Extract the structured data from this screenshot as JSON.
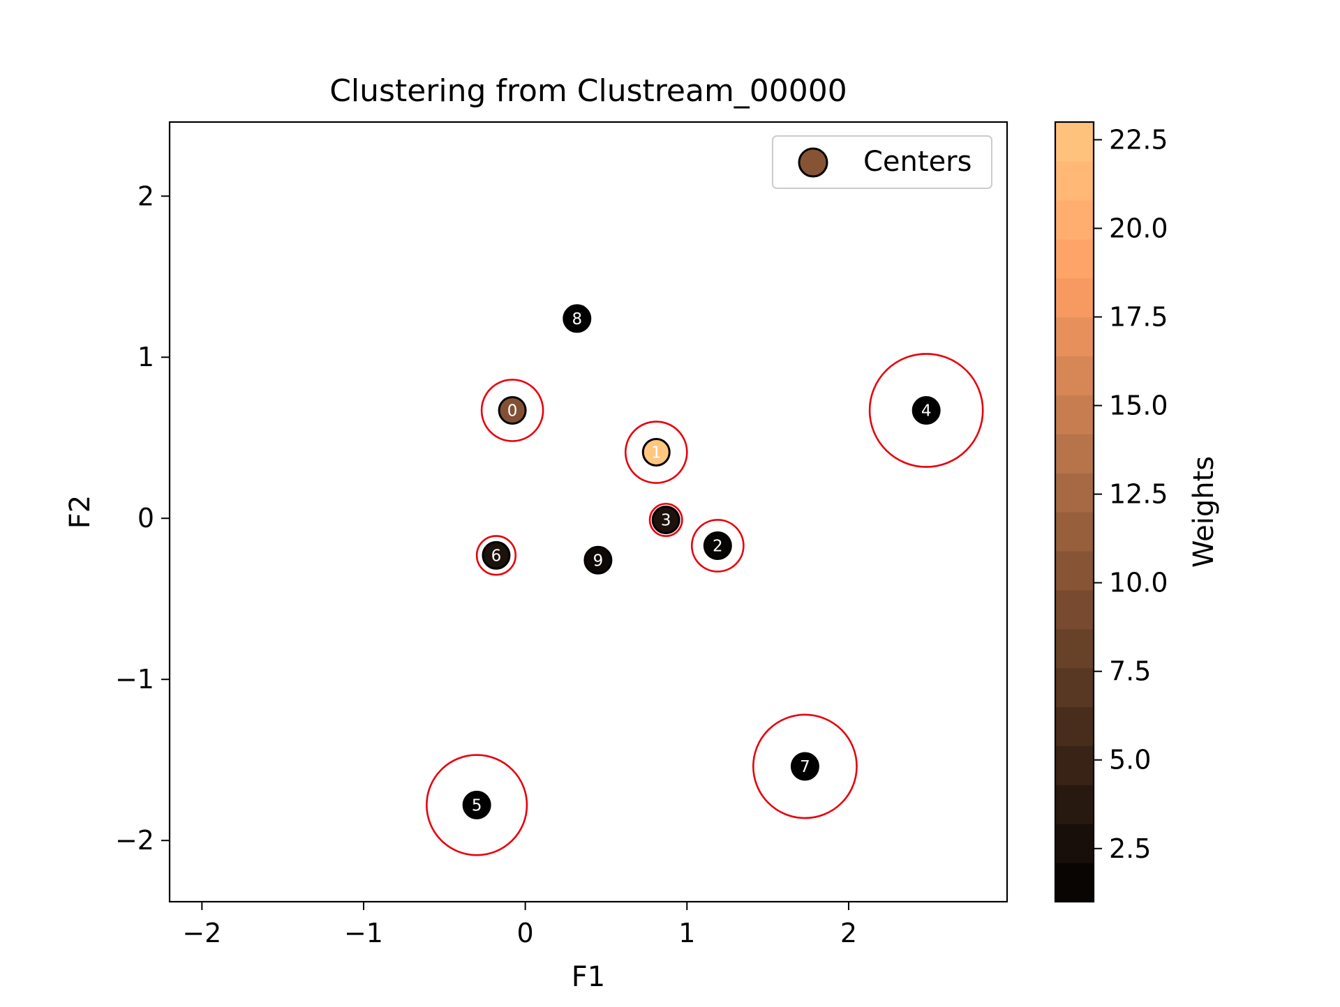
{
  "chart_data": {
    "type": "scatter",
    "title": "Clustering from Clustream_00000",
    "xlabel": "F1",
    "ylabel": "F2",
    "xlim": [
      -2.2,
      2.98
    ],
    "ylim": [
      -2.38,
      2.46
    ],
    "xticks": [
      -2,
      -1,
      0,
      1,
      2
    ],
    "xtick_labels": [
      "−2",
      "−1",
      "0",
      "1",
      "2"
    ],
    "yticks": [
      -2,
      -1,
      0,
      1,
      2
    ],
    "ytick_labels": [
      "−2",
      "−1",
      "0",
      "1",
      "2"
    ],
    "grid": false,
    "legend": {
      "position": "top-right",
      "entries": [
        "Centers"
      ]
    },
    "colorbar": {
      "label": "Weights",
      "colormap": "copper",
      "range": [
        1.0,
        23.0
      ],
      "ticks": [
        2.5,
        5.0,
        7.5,
        10.0,
        12.5,
        15.0,
        17.5,
        20.0,
        22.5
      ],
      "tick_labels": [
        "2.5",
        "5.0",
        "7.5",
        "10.0",
        "12.5",
        "15.0",
        "17.5",
        "20.0",
        "22.5"
      ]
    },
    "points": [
      {
        "label": "0",
        "x": -0.08,
        "y": 0.67,
        "weight": 10.0,
        "radius": 0.19
      },
      {
        "label": "1",
        "x": 0.81,
        "y": 0.41,
        "weight": 23.0,
        "radius": 0.19
      },
      {
        "label": "2",
        "x": 1.19,
        "y": -0.17,
        "weight": 1.5,
        "radius": 0.16
      },
      {
        "label": "3",
        "x": 0.87,
        "y": -0.01,
        "weight": 3.0,
        "radius": 0.1
      },
      {
        "label": "4",
        "x": 2.48,
        "y": 0.67,
        "weight": 1.0,
        "radius": 0.35
      },
      {
        "label": "5",
        "x": -0.3,
        "y": -1.78,
        "weight": 1.0,
        "radius": 0.31
      },
      {
        "label": "6",
        "x": -0.18,
        "y": -0.23,
        "weight": 3.0,
        "radius": 0.12
      },
      {
        "label": "7",
        "x": 1.73,
        "y": -1.54,
        "weight": 1.0,
        "radius": 0.32
      },
      {
        "label": "8",
        "x": 0.32,
        "y": 1.24,
        "weight": 1.0,
        "radius": 0.0
      },
      {
        "label": "9",
        "x": 0.45,
        "y": -0.26,
        "weight": 2.0,
        "radius": 0.06
      }
    ]
  }
}
